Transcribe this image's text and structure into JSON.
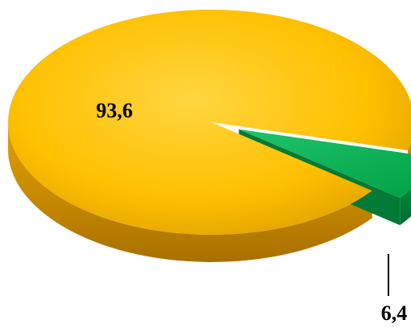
{
  "chart_data": {
    "type": "pie",
    "style": "3d",
    "categories": [
      "",
      ""
    ],
    "values": [
      93.6,
      6.4
    ],
    "data_labels": [
      "93,6",
      "6,4"
    ],
    "colors": [
      "#FFC000",
      "#00B050"
    ],
    "exploded": [
      false,
      true
    ],
    "title": "",
    "legend": "none"
  }
}
